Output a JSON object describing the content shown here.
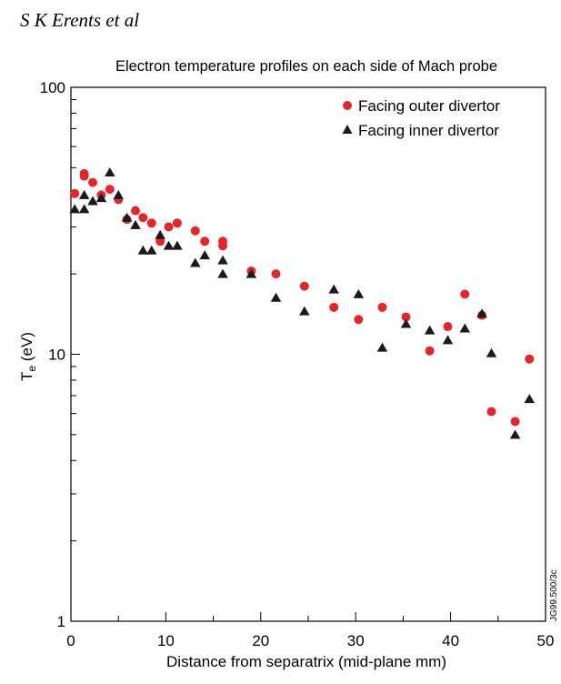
{
  "header": {
    "author": "S K Erents et al"
  },
  "figure_code": "JG99.500/3c",
  "chart_data": {
    "type": "scatter",
    "title": "Electron temperature profiles on each side of Mach probe",
    "xlabel": "Distance from separatrix (mid-plane mm)",
    "ylabel_main": "T",
    "ylabel_sub": "e",
    "ylabel_unit": " (eV)",
    "xlim": [
      0,
      50
    ],
    "ylim": [
      1,
      100
    ],
    "y_scale": "log",
    "x_ticks": [
      "0",
      "10",
      "20",
      "30",
      "40",
      "50"
    ],
    "y_ticks": [
      "1",
      "10",
      "100"
    ],
    "legend_position": "top-right",
    "series": [
      {
        "name": "Facing outer divertor",
        "marker": "circle",
        "color": "#e3262b",
        "points": [
          [
            0.4,
            40
          ],
          [
            1.4,
            46.5
          ],
          [
            1.4,
            47.5
          ],
          [
            2.3,
            44
          ],
          [
            3.2,
            39.5
          ],
          [
            4.1,
            41.5
          ],
          [
            5.0,
            38
          ],
          [
            5.9,
            32
          ],
          [
            6.8,
            34.5
          ],
          [
            7.6,
            32.5
          ],
          [
            8.5,
            31
          ],
          [
            9.4,
            26.5
          ],
          [
            10.3,
            30
          ],
          [
            11.2,
            31
          ],
          [
            13.1,
            29
          ],
          [
            14.1,
            26.5
          ],
          [
            16.0,
            26.5
          ],
          [
            16.0,
            25.5
          ],
          [
            19.0,
            20.5
          ],
          [
            21.6,
            20
          ],
          [
            24.6,
            18
          ],
          [
            27.7,
            15
          ],
          [
            30.3,
            13.5
          ],
          [
            32.8,
            15
          ],
          [
            35.3,
            13.8
          ],
          [
            37.8,
            10.3
          ],
          [
            39.7,
            12.7
          ],
          [
            41.5,
            16.8
          ],
          [
            43.3,
            14
          ],
          [
            44.3,
            6.1
          ],
          [
            46.8,
            5.6
          ],
          [
            48.3,
            9.6
          ]
        ]
      },
      {
        "name": "Facing inner divertor",
        "marker": "triangle",
        "color": "#1a1a1a",
        "points": [
          [
            0.4,
            35
          ],
          [
            1.4,
            35
          ],
          [
            1.4,
            39.5
          ],
          [
            2.3,
            37.5
          ],
          [
            3.2,
            38.5
          ],
          [
            4.1,
            48
          ],
          [
            5.0,
            39.5
          ],
          [
            5.9,
            32.5
          ],
          [
            6.8,
            30.5
          ],
          [
            7.6,
            24.5
          ],
          [
            8.5,
            24.5
          ],
          [
            9.4,
            28
          ],
          [
            10.3,
            25.5
          ],
          [
            11.2,
            25.5
          ],
          [
            13.1,
            22
          ],
          [
            14.1,
            23.5
          ],
          [
            16.0,
            22.5
          ],
          [
            16.0,
            20
          ],
          [
            19.0,
            20
          ],
          [
            21.6,
            16.3
          ],
          [
            24.6,
            14.5
          ],
          [
            27.7,
            17.5
          ],
          [
            30.3,
            16.8
          ],
          [
            32.8,
            10.6
          ],
          [
            35.3,
            13
          ],
          [
            37.8,
            12.3
          ],
          [
            39.7,
            11.3
          ],
          [
            41.5,
            12.5
          ],
          [
            43.3,
            14.2
          ],
          [
            44.3,
            10.1
          ],
          [
            46.8,
            5
          ],
          [
            48.3,
            6.8
          ]
        ]
      }
    ]
  }
}
